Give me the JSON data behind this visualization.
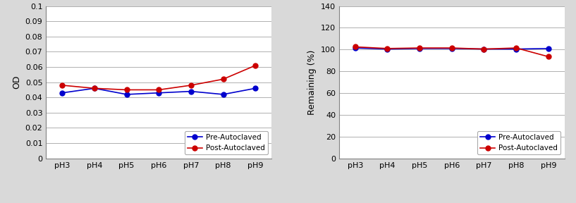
{
  "x_labels": [
    "pH3",
    "pH4",
    "pH5",
    "pH6",
    "pH7",
    "pH8",
    "pH9"
  ],
  "left": {
    "pre_autoclaved": [
      0.043,
      0.046,
      0.042,
      0.043,
      0.044,
      0.042,
      0.046
    ],
    "post_autoclaved": [
      0.048,
      0.046,
      0.045,
      0.045,
      0.048,
      0.052,
      0.061
    ],
    "ylabel": "OD",
    "ylim": [
      0,
      0.1
    ],
    "yticks": [
      0,
      0.01,
      0.02,
      0.03,
      0.04,
      0.05,
      0.06,
      0.07,
      0.08,
      0.09,
      0.1
    ],
    "ytick_labels": [
      "0",
      "0.01",
      "0.02",
      "0.03",
      "0.04",
      "0.05",
      "0.06",
      "0.07",
      "0.08",
      "0.09",
      "0.1"
    ]
  },
  "right": {
    "pre_autoclaved": [
      101.5,
      100.5,
      101.0,
      101.0,
      100.5,
      100.5,
      101.0
    ],
    "post_autoclaved": [
      102.5,
      101.0,
      101.5,
      101.5,
      100.5,
      101.5,
      93.5
    ],
    "ylabel": "Remaining (%)",
    "ylim": [
      0,
      140
    ],
    "yticks": [
      0,
      20,
      40,
      60,
      80,
      100,
      120,
      140
    ],
    "ytick_labels": [
      "0",
      "20",
      "40",
      "60",
      "80",
      "100",
      "120",
      "140"
    ]
  },
  "pre_color": "#0000cd",
  "post_color": "#cc0000",
  "pre_label": "Pre-Autoclaved",
  "post_label": "Post-Autoclaved",
  "fig_bg_color": "#d9d9d9",
  "plot_bg_color": "#ffffff",
  "grid_color": "#b0b0b0",
  "legend_loc": "lower right",
  "legend_fontsize": 7.5,
  "axis_label_fontsize": 9,
  "tick_fontsize": 8,
  "marker": "o",
  "markersize": 5,
  "linewidth": 1.2,
  "spine_color": "#808080"
}
